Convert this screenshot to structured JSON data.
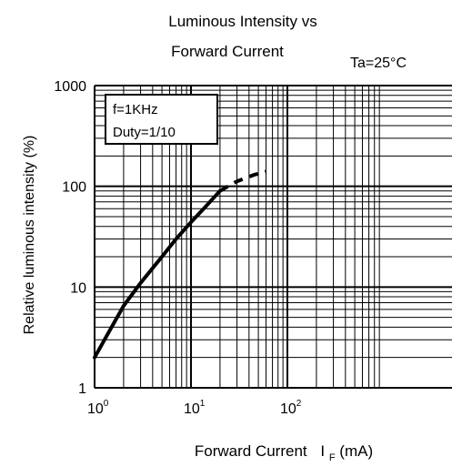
{
  "chart_data": {
    "type": "line",
    "title_line1": "Luminous Intensity vs",
    "title_line2": "Forward Current",
    "condition": "Ta=25°C",
    "xlabel_prefix": "Forward Current",
    "xlabel_symbol": "I",
    "xlabel_sub": "F",
    "xlabel_unit": "(mA)",
    "ylabel": "Relative luminous intensity   (%)",
    "x_scale": "log",
    "y_scale": "log",
    "xlim": [
      1,
      1000
    ],
    "ylim": [
      1,
      1000
    ],
    "x_tick_base": "10",
    "x_ticks": [
      {
        "value": 1,
        "exp": "0"
      },
      {
        "value": 10,
        "exp": "1"
      },
      {
        "value": 100,
        "exp": "2"
      }
    ],
    "y_ticks": [
      {
        "value": 1,
        "label": "1"
      },
      {
        "value": 10,
        "label": "10"
      },
      {
        "value": 100,
        "label": "100"
      },
      {
        "value": 1000,
        "label": "1000"
      }
    ],
    "grid": true,
    "legend_box": {
      "position": "top-left",
      "lines": [
        "f=1KHz",
        "Duty=1/10"
      ]
    },
    "series": [
      {
        "style": "solid",
        "x": [
          1,
          1.5,
          2,
          3,
          5,
          7,
          10,
          14,
          20
        ],
        "y": [
          2,
          4,
          6.5,
          11,
          20,
          30,
          44,
          62,
          90
        ]
      },
      {
        "style": "dashed",
        "x": [
          20,
          30,
          45,
          60
        ],
        "y": [
          90,
          112,
          130,
          140
        ]
      }
    ]
  }
}
